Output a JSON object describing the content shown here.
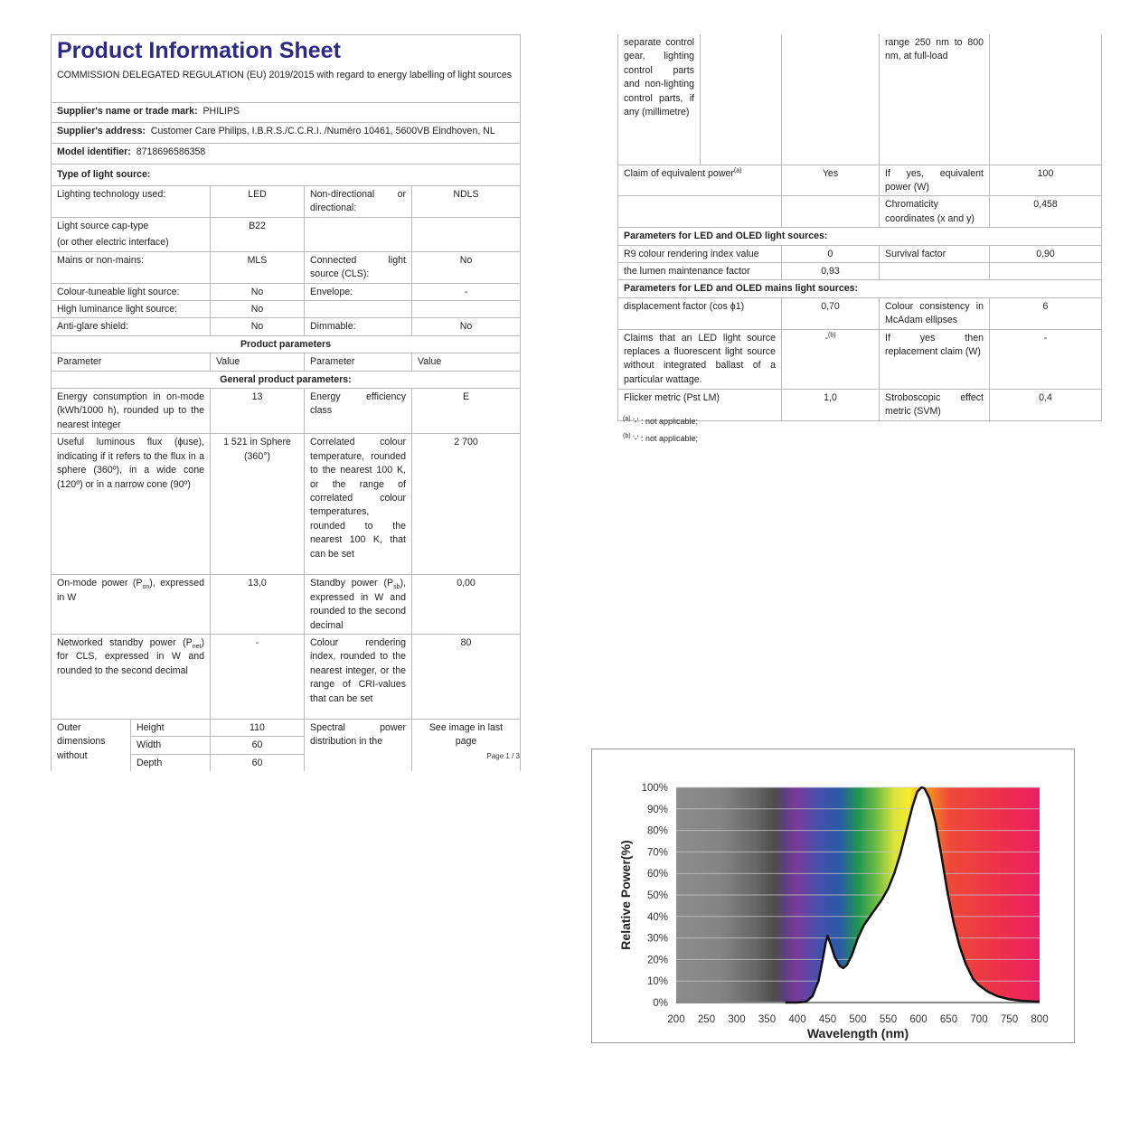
{
  "left": {
    "title": "Product Information Sheet",
    "subtitle": "COMMISSION DELEGATED REGULATION (EU) 2019/2015 with regard to energy labelling of light sources",
    "supplier_name_label": "Supplier's name or trade mark:",
    "supplier_name": "PHILIPS",
    "supplier_address_label": "Supplier's address:",
    "supplier_address": "Customer Care Philips, I.B.R.S./C.C.R.I. /Numéro 10461, 5600VB Eindhoven, NL",
    "model_label": "Model identifier:",
    "model": "8718696586358",
    "type_label": "Type of light source:",
    "type_rows": [
      {
        "p1": "Lighting technology used:",
        "v1": "LED",
        "p2": "Non-directional or directional:",
        "v2": "NDLS"
      },
      {
        "p1": "Light source cap-type",
        "p1b": "(or other electric interface)",
        "v1": "B22",
        "p2": "",
        "v2": ""
      },
      {
        "p1": "Mains or non-mains:",
        "v1": "MLS",
        "p2": "Connected light source (CLS):",
        "v2": "No"
      },
      {
        "p1": "Colour-tuneable light source:",
        "v1": "No",
        "p2": "Envelope:",
        "v2": "-"
      },
      {
        "p1": "High luminance light source:",
        "v1": "No",
        "p2": "",
        "v2": ""
      },
      {
        "p1": "Anti-glare shield:",
        "v1": "No",
        "p2": "Dimmable:",
        "v2": "No"
      }
    ],
    "product_parameters": "Product parameters",
    "col_headers": [
      "Parameter",
      "Value",
      "Parameter",
      "Value"
    ],
    "general_parameters": "General product parameters:",
    "energy": {
      "p1": "Energy consumption in on-mode (kWh/1000 h), rounded up to the nearest integer",
      "v1": "13",
      "p2": "Energy efficiency class",
      "v2": "E"
    },
    "flux": {
      "p1": "Useful luminous flux (ϕuse), indicating if it refers to the flux in a sphere (360º), in a wide cone (120º) or in a narrow cone (90º)",
      "v1": "1 521 in Sphere (360°)",
      "p2": "Correlated colour temperature, rounded to the nearest 100 K, or the range of correlated colour temperatures, rounded to the nearest 100 K, that can be set",
      "v2": "2 700"
    },
    "onmode": {
      "p1_pre": "On-mode power (P",
      "p1_sub": "on",
      "p1_post": "), expressed in W",
      "v1": "13,0",
      "p2_pre": "Standby power (P",
      "p2_sub": "sb",
      "p2_post": "), expressed in W and rounded to the second decimal",
      "v2": "0,00"
    },
    "networked": {
      "p1_pre": "Networked standby power (P",
      "p1_sub": "net",
      "p1_post": ") for CLS, expressed in W and rounded to the second decimal",
      "v1": "-",
      "p2": "Colour rendering index, rounded to the nearest integer, or the range of CRI-values that can be set",
      "v2": "80"
    },
    "dimensions": {
      "label": "Outer dimensions without",
      "height_label": "Height",
      "height": "110",
      "width_label": "Width",
      "width": "60",
      "depth_label": "Depth",
      "depth": "60",
      "p2": "Spectral power distribution in the",
      "v2": "See image in last page"
    },
    "page": "Page 1 / 3"
  },
  "right": {
    "cont": {
      "p1": "separate control gear, lighting control parts and non-lighting control parts, if any (millimetre)",
      "p2": "range 250 nm to 800 nm, at full-load"
    },
    "claim": {
      "p1": "Claim of equivalent power",
      "p1_sup": "(a)",
      "v1": "Yes",
      "p2": "If yes, equivalent power (W)",
      "v2": "100"
    },
    "chroma": {
      "p2": "Chromaticity coordinates (x and y)",
      "v2": "0,458"
    },
    "led_header": "Parameters for LED and OLED light sources:",
    "r9": {
      "p1": "R9 colour rendering index value",
      "v1": "0",
      "p2": "Survival factor",
      "v2": "0,90"
    },
    "lumen": {
      "p1": "the lumen maintenance factor",
      "v1": "0,93"
    },
    "mains_header": "Parameters for LED and OLED mains light sources:",
    "displacement": {
      "p1": "displacement factor (cos ϕ1)",
      "v1": "0,70",
      "p2": "Colour consistency in McAdam ellipses",
      "v2": "6"
    },
    "claims": {
      "p1": "Claims that an LED light source replaces a fluorescent light source without integrated ballast of a particular wattage.",
      "v1": "-",
      "v1_sup": "(b)",
      "p2": "If yes then replacement claim (W)",
      "v2": "-"
    },
    "flicker": {
      "p1": "Flicker metric (Pst LM)",
      "v1": "1,0",
      "p2": "Stroboscopic effect metric (SVM)",
      "v2": "0,4"
    },
    "footnotes": [
      {
        "mark": "(a)",
        "text": "'-' : not applicable;"
      },
      {
        "mark": "(b)",
        "text": "'-' : not applicable;"
      }
    ]
  },
  "chart_data": {
    "type": "line",
    "title": "",
    "xlabel": "Wavelength (nm)",
    "ylabel": "Relative Power(%)",
    "xlim": [
      200,
      800
    ],
    "ylim": [
      0,
      100
    ],
    "xticks": [
      200,
      250,
      300,
      350,
      400,
      450,
      500,
      550,
      600,
      650,
      700,
      750,
      800
    ],
    "yticks": [
      "0%",
      "10%",
      "20%",
      "30%",
      "40%",
      "50%",
      "60%",
      "70%",
      "80%",
      "90%",
      "100%"
    ],
    "grid": true,
    "background": "visible spectrum gradient",
    "line_color": "#111111",
    "x": [
      380,
      400,
      415,
      425,
      435,
      442,
      447,
      450,
      455,
      462,
      470,
      476,
      482,
      490,
      500,
      510,
      520,
      530,
      540,
      550,
      560,
      570,
      580,
      590,
      598,
      605,
      610,
      618,
      628,
      638,
      648,
      658,
      668,
      678,
      690,
      700,
      715,
      730,
      750,
      770,
      790,
      800
    ],
    "y": [
      0,
      0,
      0.5,
      3,
      10,
      20,
      28,
      31,
      27,
      21,
      17,
      16,
      17.5,
      22,
      30,
      36,
      40,
      44,
      48,
      53,
      60,
      69,
      80,
      91,
      98,
      100,
      99.5,
      95,
      84,
      68,
      51,
      37,
      26,
      18,
      11,
      8,
      5,
      3,
      1.5,
      0.8,
      0.5,
      0.4
    ]
  }
}
